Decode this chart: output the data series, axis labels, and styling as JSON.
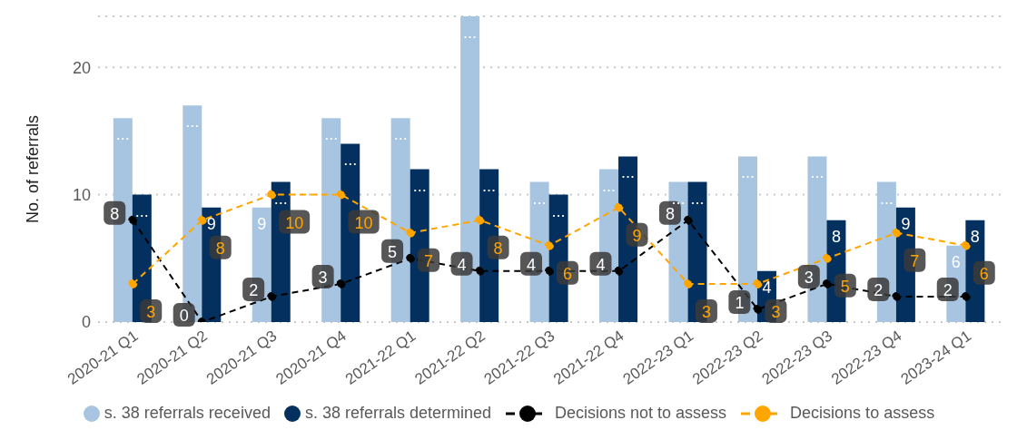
{
  "chart_data": {
    "type": "bar",
    "ylabel": "No. of referrals",
    "categories": [
      "2020-21 Q1",
      "2020-21 Q2",
      "2020-21 Q3",
      "2020-21 Q4",
      "2021-22 Q1",
      "2021-22 Q2",
      "2021-22 Q3",
      "2021-22 Q4",
      "2022-23 Q1",
      "2022-23 Q2",
      "2022-23 Q3",
      "2022-23 Q4",
      "2023-24 Q1"
    ],
    "series": [
      {
        "name": "s. 38 referrals received",
        "color": "#a7c4e0",
        "values": [
          16,
          17,
          9,
          16,
          16,
          24,
          11,
          12,
          11,
          13,
          13,
          11,
          6
        ],
        "value_labels": [
          "...",
          "...",
          "9",
          "...",
          "...",
          "...",
          "...",
          "...",
          "...",
          "...",
          "...",
          "...",
          "6"
        ]
      },
      {
        "name": "s. 38 referrals determined",
        "color": "#03305f",
        "values": [
          10,
          9,
          11,
          14,
          12,
          12,
          10,
          13,
          11,
          4,
          8,
          9,
          8
        ],
        "value_labels": [
          "...",
          "9",
          "...",
          "...",
          "...",
          "...",
          "...",
          "...",
          "...",
          "4",
          "8",
          "9",
          "8"
        ]
      },
      {
        "name": "Decisions not to assess",
        "type": "line",
        "color": "#000000",
        "values": [
          8,
          0,
          2,
          3,
          5,
          4,
          4,
          4,
          8,
          1,
          3,
          2,
          2
        ],
        "value_labels": [
          "8",
          "0",
          "2",
          "3",
          "5",
          "4",
          "4",
          "4",
          "8",
          "1",
          "3",
          "2",
          "2"
        ]
      },
      {
        "name": "Decisions to assess",
        "type": "line",
        "color": "#ffa500",
        "values": [
          3,
          8,
          10,
          10,
          7,
          8,
          6,
          9,
          3,
          3,
          5,
          7,
          6
        ],
        "value_labels": [
          "3",
          "8",
          "10",
          "10",
          "7",
          "8",
          "6",
          "9",
          "3",
          "3",
          "5",
          "7",
          "6"
        ]
      }
    ],
    "ylim": [
      0,
      24
    ],
    "yticks": [
      0,
      10,
      20
    ],
    "grid": "y",
    "legend": "bottom",
    "marker": "circle",
    "line_style": "dashed"
  }
}
